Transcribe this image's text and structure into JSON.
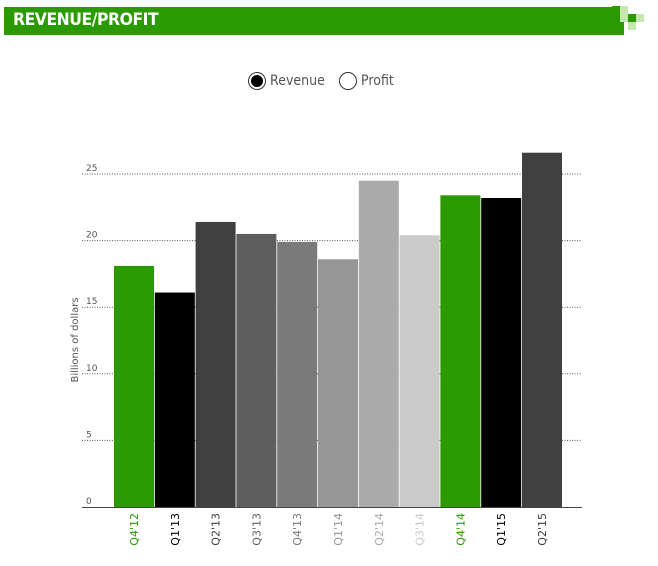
{
  "header": {
    "title": "REVENUE/PROFIT"
  },
  "toggle": {
    "options": [
      {
        "label": "Revenue",
        "selected": true
      },
      {
        "label": "Profit",
        "selected": false
      }
    ]
  },
  "colors": {
    "brand_green": "#2a9a00",
    "deco_dark": "#2a9a00",
    "deco_light": "#c6e6b0"
  },
  "chart_data": {
    "type": "bar",
    "title": "",
    "xlabel": "",
    "ylabel": "Billions of dollars",
    "ylim": [
      0,
      25
    ],
    "yticks": [
      0,
      5,
      10,
      15,
      20,
      25
    ],
    "grid": true,
    "categories": [
      "Q4'12",
      "Q1'13",
      "Q2'13",
      "Q3'13",
      "Q4'13",
      "Q1'14",
      "Q2'14",
      "Q3'14",
      "Q4'14",
      "Q1'15",
      "Q2'15"
    ],
    "values": [
      18.1,
      16.1,
      21.4,
      20.5,
      19.9,
      18.6,
      24.5,
      20.4,
      23.4,
      23.2,
      26.6
    ],
    "bar_colors": [
      "#2a9a00",
      "#000000",
      "#404040",
      "#5e5e5e",
      "#7a7a7a",
      "#969696",
      "#ababab",
      "#cacaca",
      "#2a9a00",
      "#000000",
      "#404040"
    ],
    "label_colors": [
      "#2a9a00",
      "#000000",
      "#404040",
      "#5e5e5e",
      "#7a7a7a",
      "#969696",
      "#ababab",
      "#cacaca",
      "#2a9a00",
      "#000000",
      "#404040"
    ]
  }
}
